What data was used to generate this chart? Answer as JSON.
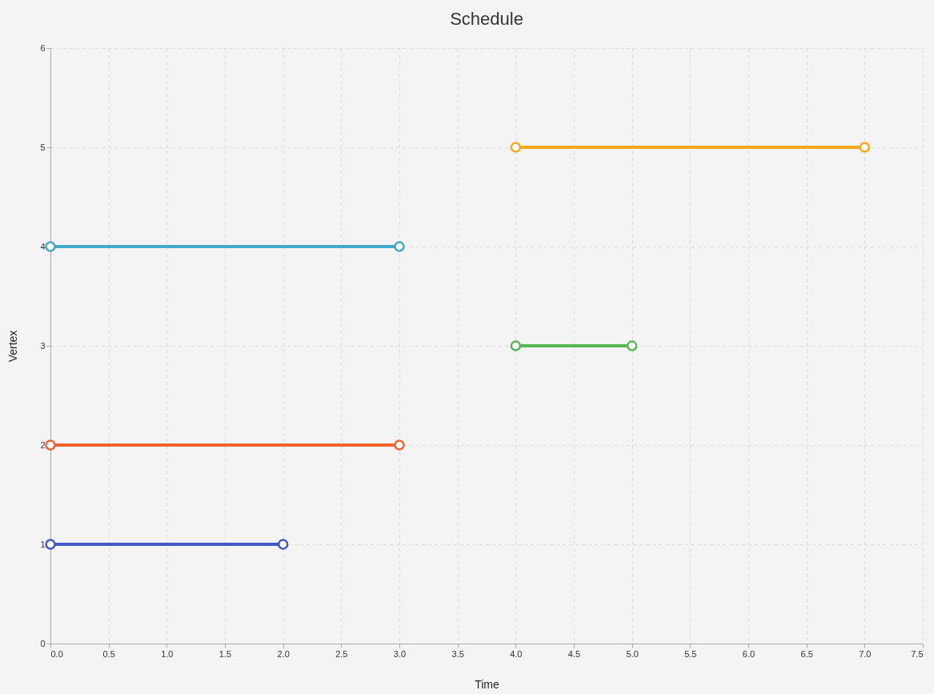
{
  "chart_data": {
    "type": "line",
    "title": "Schedule",
    "xlabel": "Time",
    "ylabel": "Vertex",
    "xlim": [
      0,
      7.5
    ],
    "xticks": [
      {
        "value": 0,
        "label": "0.0"
      },
      {
        "value": 0.5,
        "label": "0.5"
      },
      {
        "value": 1,
        "label": "1.0"
      },
      {
        "value": 1.5,
        "label": "1.5"
      },
      {
        "value": 2,
        "label": "2.0"
      },
      {
        "value": 2.5,
        "label": "2.5"
      },
      {
        "value": 3,
        "label": "3.0"
      },
      {
        "value": 3.5,
        "label": "3.5"
      },
      {
        "value": 4,
        "label": "4.0"
      },
      {
        "value": 4.5,
        "label": "4.5"
      },
      {
        "value": 5,
        "label": "5.0"
      },
      {
        "value": 5.5,
        "label": "5.5"
      },
      {
        "value": 6,
        "label": "6.0"
      },
      {
        "value": 6.5,
        "label": "6.5"
      },
      {
        "value": 7,
        "label": "7.0"
      },
      {
        "value": 7.5,
        "label": "7.5"
      }
    ],
    "ylim": [
      0,
      6
    ],
    "yticks": [
      0,
      1,
      2,
      3,
      4,
      5,
      6
    ],
    "grid": true,
    "legend": false,
    "marker": "circle",
    "line_style": "solid",
    "series": [
      {
        "color": "#4258c9",
        "x": [
          0,
          2
        ],
        "values": [
          1,
          1
        ]
      },
      {
        "color": "#f3622d",
        "x": [
          0,
          3
        ],
        "values": [
          2,
          2
        ]
      },
      {
        "color": "#57b757",
        "x": [
          4,
          5
        ],
        "values": [
          3,
          3
        ]
      },
      {
        "color": "#41a9c9",
        "x": [
          0,
          3
        ],
        "values": [
          4,
          4
        ]
      },
      {
        "color": "#fba71b",
        "x": [
          4,
          7
        ],
        "values": [
          5,
          5
        ]
      }
    ]
  }
}
